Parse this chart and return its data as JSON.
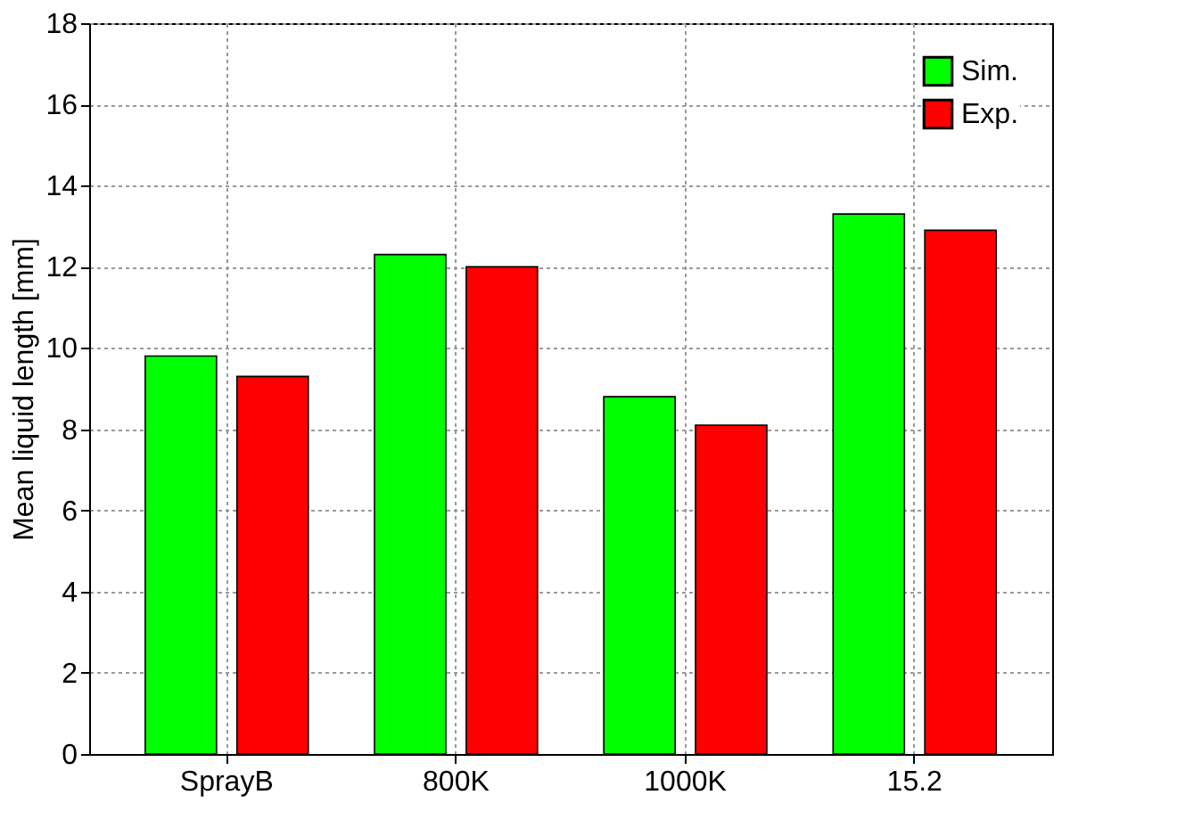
{
  "chart_data": {
    "type": "bar",
    "ylabel": "Mean liquid length [mm]",
    "categories": [
      "SprayB",
      "800K",
      "1000K",
      "15.2"
    ],
    "series": [
      {
        "name": "Sim.",
        "color": "#00ff00",
        "values": [
          9.8,
          12.3,
          8.8,
          13.3
        ]
      },
      {
        "name": "Exp.",
        "color": "#ff0000",
        "values": [
          9.3,
          12.0,
          8.1,
          12.9
        ]
      }
    ],
    "ylim": [
      0,
      18
    ],
    "yticks": [
      0,
      2,
      4,
      6,
      8,
      10,
      12,
      14,
      16,
      18
    ],
    "grid": true,
    "legend": "top right"
  }
}
